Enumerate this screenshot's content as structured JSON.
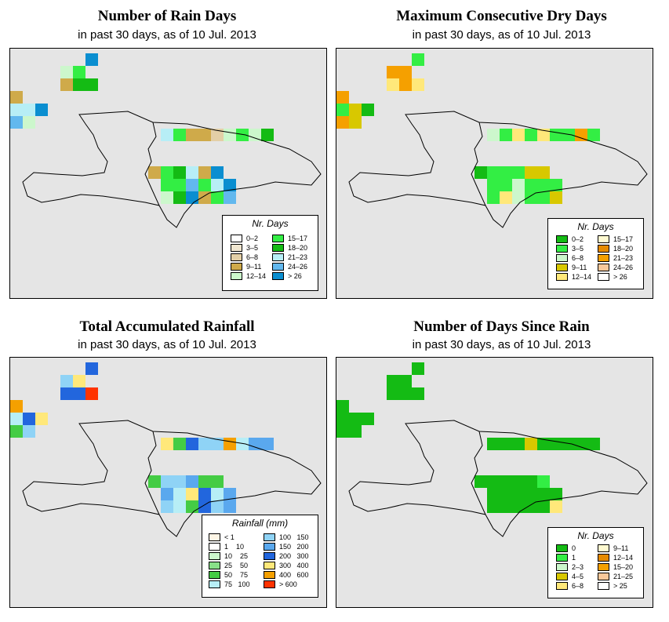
{
  "date_line": "in past 30 days, as of  10 Jul. 2013",
  "panels": [
    {
      "title": "Number of Rain Days",
      "legend_title": "Nr. Days",
      "legend": [
        {
          "label": "0–2",
          "color": "#ffffff"
        },
        {
          "label": "3–5",
          "color": "#f0e6d0"
        },
        {
          "label": "6–8",
          "color": "#e3cfa6"
        },
        {
          "label": "9–11",
          "color": "#cfaa4a"
        },
        {
          "label": "12–14",
          "color": "#ccf7cc"
        },
        {
          "label": "15–17",
          "color": "#33ee44"
        },
        {
          "label": "18–20",
          "color": "#14bb14"
        },
        {
          "label": "21–23",
          "color": "#b7eef6"
        },
        {
          "label": "24–26",
          "color": "#62b8ee"
        },
        {
          "label": "> 26",
          "color": "#0a8ed0"
        }
      ]
    },
    {
      "title": "Maximum Consecutive Dry Days",
      "legend_title": "Nr. Days",
      "legend": [
        {
          "label": "0–2",
          "color": "#14bb14"
        },
        {
          "label": "3–5",
          "color": "#33ee44"
        },
        {
          "label": "6–8",
          "color": "#ccf7cc"
        },
        {
          "label": "9–11",
          "color": "#d8c800"
        },
        {
          "label": "12–14",
          "color": "#ffe87a"
        },
        {
          "label": "15–17",
          "color": "#fffad0"
        },
        {
          "label": "18–20",
          "color": "#e58a00"
        },
        {
          "label": "21–23",
          "color": "#f5a000"
        },
        {
          "label": "24–26",
          "color": "#f9c89a"
        },
        {
          "label": "> 26",
          "color": "#ffffff"
        }
      ]
    },
    {
      "title": "Total Accumulated Rainfall",
      "legend_title": "Rainfall (mm)",
      "legend": [
        {
          "label": "< 1",
          "color": "#fff6e6"
        },
        {
          "label": "1    10",
          "color": "#ffffff"
        },
        {
          "label": "10    25",
          "color": "#ccf7cc"
        },
        {
          "label": "25    50",
          "color": "#88e088"
        },
        {
          "label": "50    75",
          "color": "#44cc44"
        },
        {
          "label": "75   100",
          "color": "#b7eef6"
        },
        {
          "label": "100   150",
          "color": "#8fd3f6"
        },
        {
          "label": "150   200",
          "color": "#5aa8ee"
        },
        {
          "label": "200   300",
          "color": "#2266dd"
        },
        {
          "label": "300   400",
          "color": "#ffe87a"
        },
        {
          "label": "400   600",
          "color": "#f5a000"
        },
        {
          "label": "> 600",
          "color": "#ff3300"
        }
      ]
    },
    {
      "title": "Number of Days Since Rain",
      "legend_title": "Nr. Days",
      "legend": [
        {
          "label": "0",
          "color": "#14bb14"
        },
        {
          "label": "1",
          "color": "#33ee44"
        },
        {
          "label": "2–3",
          "color": "#ccf7cc"
        },
        {
          "label": "4–5",
          "color": "#d8c800"
        },
        {
          "label": "6–8",
          "color": "#ffe87a"
        },
        {
          "label": "9–11",
          "color": "#fffad0"
        },
        {
          "label": "12–14",
          "color": "#e58a00"
        },
        {
          "label": "15–20",
          "color": "#f5a000"
        },
        {
          "label": "21–25",
          "color": "#f9c89a"
        },
        {
          "label": "> 25",
          "color": "#ffffff"
        }
      ]
    }
  ]
}
